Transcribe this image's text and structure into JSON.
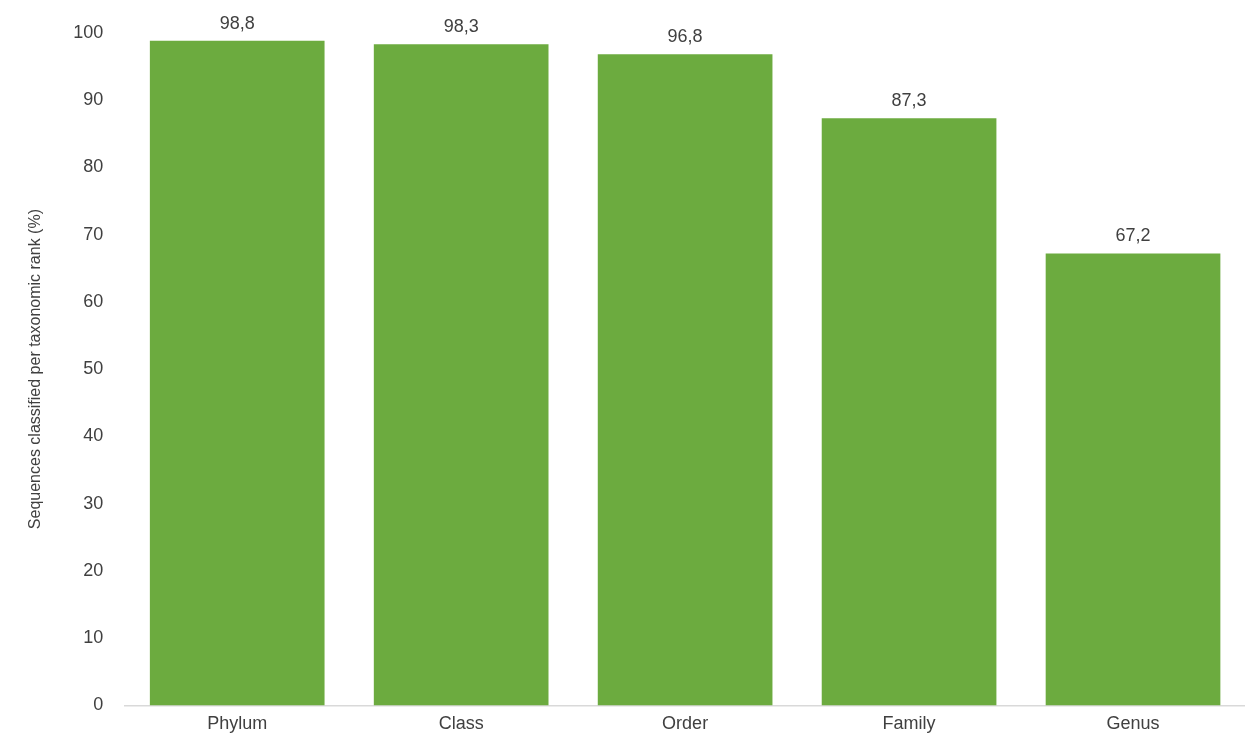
{
  "chart_data": {
    "type": "bar",
    "categories": [
      "Phylum",
      "Class",
      "Order",
      "Family",
      "Genus"
    ],
    "values": [
      98.8,
      98.3,
      96.8,
      87.3,
      67.2
    ],
    "value_labels": [
      "98,8",
      "98,3",
      "96,8",
      "87,3",
      "67,2"
    ],
    "color": "#6cab3f",
    "ylabel": "Sequences classified per taxonomic rank (%)",
    "ylim": [
      0,
      100
    ],
    "yticks": [
      0,
      10,
      20,
      30,
      40,
      50,
      60,
      70,
      80,
      90,
      100
    ]
  }
}
